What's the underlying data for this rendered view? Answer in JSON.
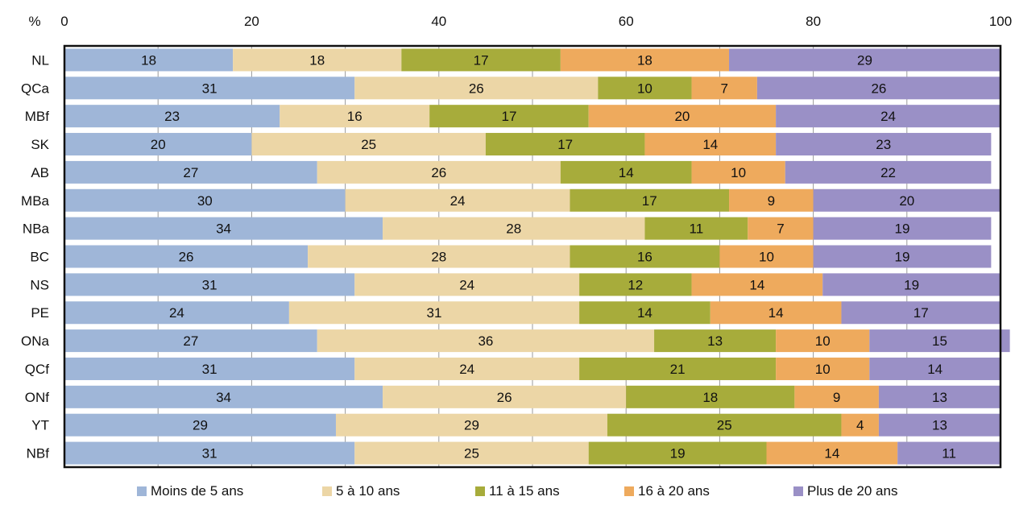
{
  "chart_data": {
    "type": "bar",
    "orientation": "horizontal",
    "stacked": true,
    "unit_label": "%",
    "xlim": [
      0,
      100
    ],
    "x_ticks": [
      "0",
      "20",
      "40",
      "60",
      "80",
      "100"
    ],
    "grid": true,
    "legend_position": "bottom",
    "categories": [
      "NL",
      "QCa",
      "MBf",
      "SK",
      "AB",
      "MBa",
      "NBa",
      "BC",
      "NS",
      "PE",
      "ONa",
      "QCf",
      "ONf",
      "YT",
      "NBf"
    ],
    "series": [
      {
        "name": "Moins de 5 ans",
        "color": "#9fb6d8",
        "values": [
          18,
          31,
          23,
          20,
          27,
          30,
          34,
          26,
          31,
          24,
          27,
          31,
          34,
          29,
          31
        ]
      },
      {
        "name": "5 à 10 ans",
        "color": "#ecd6a6",
        "values": [
          18,
          26,
          16,
          25,
          26,
          24,
          28,
          28,
          24,
          31,
          36,
          24,
          26,
          29,
          25
        ]
      },
      {
        "name": "11 à 15 ans",
        "color": "#a7ac3b",
        "values": [
          17,
          10,
          17,
          17,
          14,
          17,
          11,
          16,
          12,
          14,
          13,
          21,
          18,
          25,
          19
        ]
      },
      {
        "name": "16 à 20 ans",
        "color": "#eeaa5d",
        "values": [
          18,
          7,
          20,
          14,
          10,
          9,
          7,
          10,
          14,
          14,
          10,
          10,
          9,
          4,
          14
        ]
      },
      {
        "name": "Plus de 20 ans",
        "color": "#9a90c6",
        "values": [
          29,
          26,
          24,
          23,
          22,
          20,
          19,
          19,
          19,
          17,
          15,
          14,
          13,
          13,
          11
        ]
      }
    ]
  }
}
